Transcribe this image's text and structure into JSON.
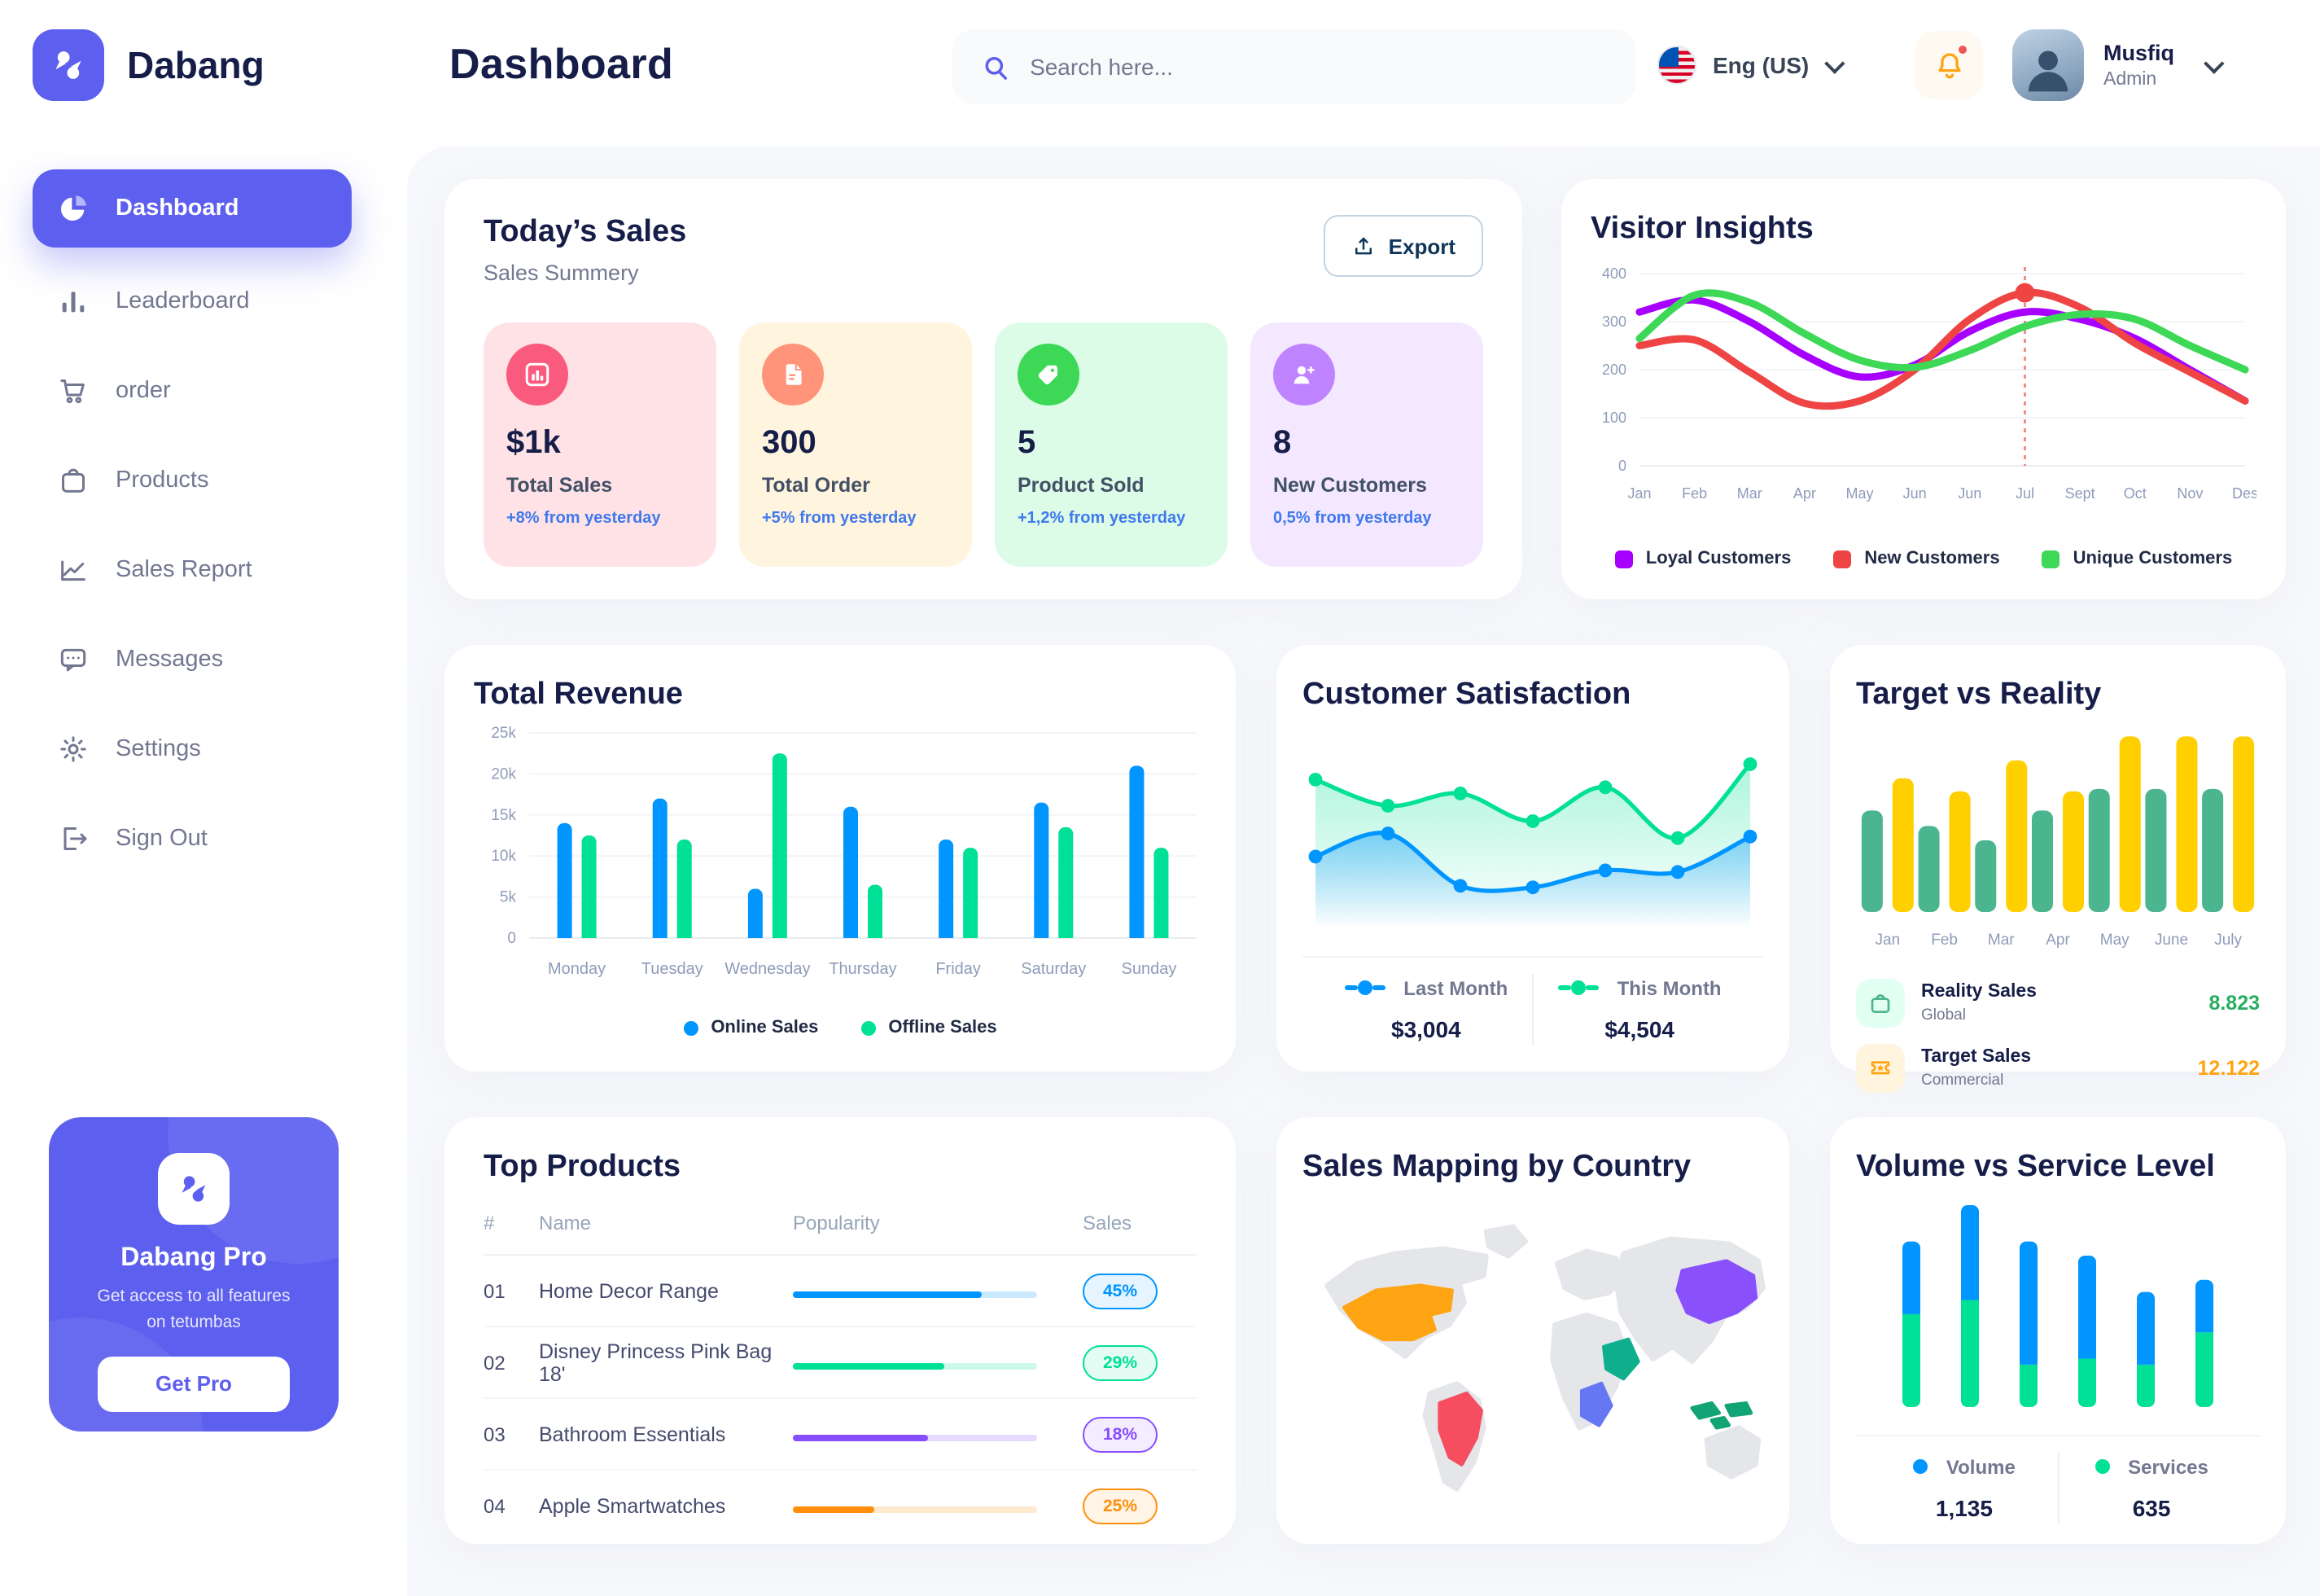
{
  "app": {
    "brand": "Dabang",
    "accent_color": "#5D5FEF"
  },
  "header": {
    "title": "Dashboard",
    "search_placeholder": "Search here...",
    "language": "Eng (US)",
    "user": {
      "name": "Musfiq",
      "role": "Admin"
    }
  },
  "sidebar": {
    "items": [
      {
        "label": "Dashboard",
        "active": true
      },
      {
        "label": "Leaderboard",
        "active": false
      },
      {
        "label": "order",
        "active": false
      },
      {
        "label": "Products",
        "active": false
      },
      {
        "label": "Sales Report",
        "active": false
      },
      {
        "label": "Messages",
        "active": false
      },
      {
        "label": "Settings",
        "active": false
      },
      {
        "label": "Sign Out",
        "active": false
      }
    ],
    "promo": {
      "title": "Dabang Pro",
      "subtitle": "Get access to all features on tetumbas",
      "button": "Get Pro"
    }
  },
  "today_sales": {
    "title": "Today’s Sales",
    "subtitle": "Sales Summery",
    "export_label": "Export",
    "stats": [
      {
        "value": "$1k",
        "label": "Total Sales",
        "delta": "+8% from yesterday",
        "bg": "#FFE2E5",
        "icon_bg": "#FA5A7D",
        "icon": "sales-chart-icon"
      },
      {
        "value": "300",
        "label": "Total Order",
        "delta": "+5% from yesterday",
        "bg": "#FFF4DE",
        "icon_bg": "#FF947A",
        "icon": "order-file-icon"
      },
      {
        "value": "5",
        "label": "Product Sold",
        "delta": "+1,2% from yesterday",
        "bg": "#DCFCE7",
        "icon_bg": "#3CD856",
        "icon": "tag-icon"
      },
      {
        "value": "8",
        "label": "New Customers",
        "delta": "0,5% from yesterday",
        "bg": "#F3E8FF",
        "icon_bg": "#BF83FF",
        "icon": "new-user-icon"
      }
    ]
  },
  "chart_data": [
    {
      "id": "visitor_insights",
      "type": "line",
      "title": "Visitor Insights",
      "x": [
        "Jan",
        "Feb",
        "Mar",
        "Apr",
        "May",
        "Jun",
        "Jun",
        "Jul",
        "Sept",
        "Oct",
        "Nov",
        "Des"
      ],
      "ylim": [
        0,
        400
      ],
      "yticks": [
        "0",
        "100",
        "200",
        "300",
        "400"
      ],
      "grid": true,
      "legend_position": "bottom",
      "series": [
        {
          "name": "Loyal Customers",
          "color": "#A700FF",
          "values": [
            320,
            345,
            300,
            230,
            185,
            210,
            280,
            320,
            305,
            265,
            200,
            135
          ]
        },
        {
          "name": "New Customers",
          "color": "#EF4444",
          "values": [
            250,
            262,
            195,
            130,
            135,
            200,
            305,
            360,
            330,
            255,
            195,
            135
          ]
        },
        {
          "name": "Unique Customers",
          "color": "#3CD856",
          "values": [
            265,
            355,
            340,
            275,
            220,
            205,
            240,
            290,
            315,
            305,
            250,
            200
          ]
        }
      ],
      "annotation": {
        "x_index": 7,
        "x_label": "Jul",
        "series": "New Customers",
        "marker_color": "#EF4444"
      }
    },
    {
      "id": "total_revenue",
      "type": "bar",
      "title": "Total Revenue",
      "categories": [
        "Monday",
        "Tuesday",
        "Wednesday",
        "Thursday",
        "Friday",
        "Saturday",
        "Sunday"
      ],
      "ylim": [
        0,
        25000
      ],
      "yticks": [
        "0",
        "5k",
        "10k",
        "15k",
        "20k",
        "25k"
      ],
      "grid": true,
      "legend_position": "bottom",
      "series": [
        {
          "name": "Online Sales",
          "color": "#0095FF",
          "values": [
            14000,
            17000,
            6000,
            16000,
            12000,
            16500,
            21000
          ]
        },
        {
          "name": "Offline Sales",
          "color": "#00E096",
          "values": [
            12500,
            12000,
            22500,
            6500,
            11000,
            13500,
            11000
          ]
        }
      ]
    },
    {
      "id": "customer_satisfaction",
      "type": "area",
      "title": "Customer Satisfaction",
      "ylim": [
        0,
        110
      ],
      "grid": false,
      "legend_position": "bottom",
      "series": [
        {
          "name": "Last Month",
          "color": "#0095FF",
          "total": "$3,004",
          "values": [
            36,
            51,
            17,
            16,
            27,
            26,
            49
          ]
        },
        {
          "name": "This Month",
          "color": "#00E096",
          "total": "$4,504",
          "values": [
            86,
            69,
            77,
            59,
            81,
            48,
            96
          ]
        }
      ]
    },
    {
      "id": "target_vs_reality",
      "type": "bar",
      "title": "Target vs Reality",
      "categories": [
        "Jan",
        "Feb",
        "Mar",
        "Apr",
        "May",
        "June",
        "July"
      ],
      "ylim": [
        0,
        15
      ],
      "grid": false,
      "legend_position": "bottom",
      "series": [
        {
          "name": "Reality Sales",
          "subtitle": "Global",
          "color": "#4AB58E",
          "total": "8.823",
          "total_color": "#27AE60",
          "icon_bg": "#E2FFF3",
          "values": [
            8.5,
            7.2,
            6.0,
            8.5,
            10.3,
            10.3,
            10.3
          ]
        },
        {
          "name": "Target Sales",
          "subtitle": "Commercial",
          "color": "#FFCF00",
          "total": "12.122",
          "total_color": "#FFA412",
          "icon_bg": "#FFF4DE",
          "values": [
            11.2,
            10.1,
            12.7,
            10.1,
            14.7,
            14.7,
            14.7
          ]
        }
      ]
    },
    {
      "id": "top_products",
      "type": "table",
      "title": "Top Products",
      "columns": [
        "#",
        "Name",
        "Popularity",
        "Sales"
      ],
      "rows": [
        {
          "num": "01",
          "name": "Home Decor Range",
          "popularity": 77,
          "sales": "45%",
          "color": "#0095FF"
        },
        {
          "num": "02",
          "name": "Disney Princess Pink Bag 18'",
          "popularity": 62,
          "sales": "29%",
          "color": "#00E096"
        },
        {
          "num": "03",
          "name": "Bathroom Essentials",
          "popularity": 55,
          "sales": "18%",
          "color": "#884DFF"
        },
        {
          "num": "04",
          "name": "Apple Smartwatches",
          "popularity": 33,
          "sales": "25%",
          "color": "#FF8F0D"
        }
      ]
    },
    {
      "id": "sales_mapping",
      "type": "map",
      "title": "Sales Mapping by Country",
      "countries": [
        {
          "name": "United States",
          "color": "#FFA412"
        },
        {
          "name": "Brazil",
          "color": "#F64E60"
        },
        {
          "name": "Saudi Arabia",
          "color": "#0FAF8E"
        },
        {
          "name": "DR Congo",
          "color": "#6577F3"
        },
        {
          "name": "China",
          "color": "#8950FC"
        },
        {
          "name": "Indonesia",
          "color": "#12A474"
        }
      ],
      "land_color": "#E4E6EA"
    },
    {
      "id": "volume_vs_service",
      "type": "stacked-bar",
      "title": "Volume vs Service Level",
      "legend_position": "bottom",
      "series": [
        {
          "name": "Volume",
          "color": "#0095FF",
          "total": "1,135",
          "values": [
            36,
            47,
            61,
            51,
            36,
            26
          ]
        },
        {
          "name": "Services",
          "color": "#00E096",
          "total": "635",
          "values": [
            46,
            53,
            21,
            24,
            21,
            37
          ]
        }
      ]
    }
  ]
}
